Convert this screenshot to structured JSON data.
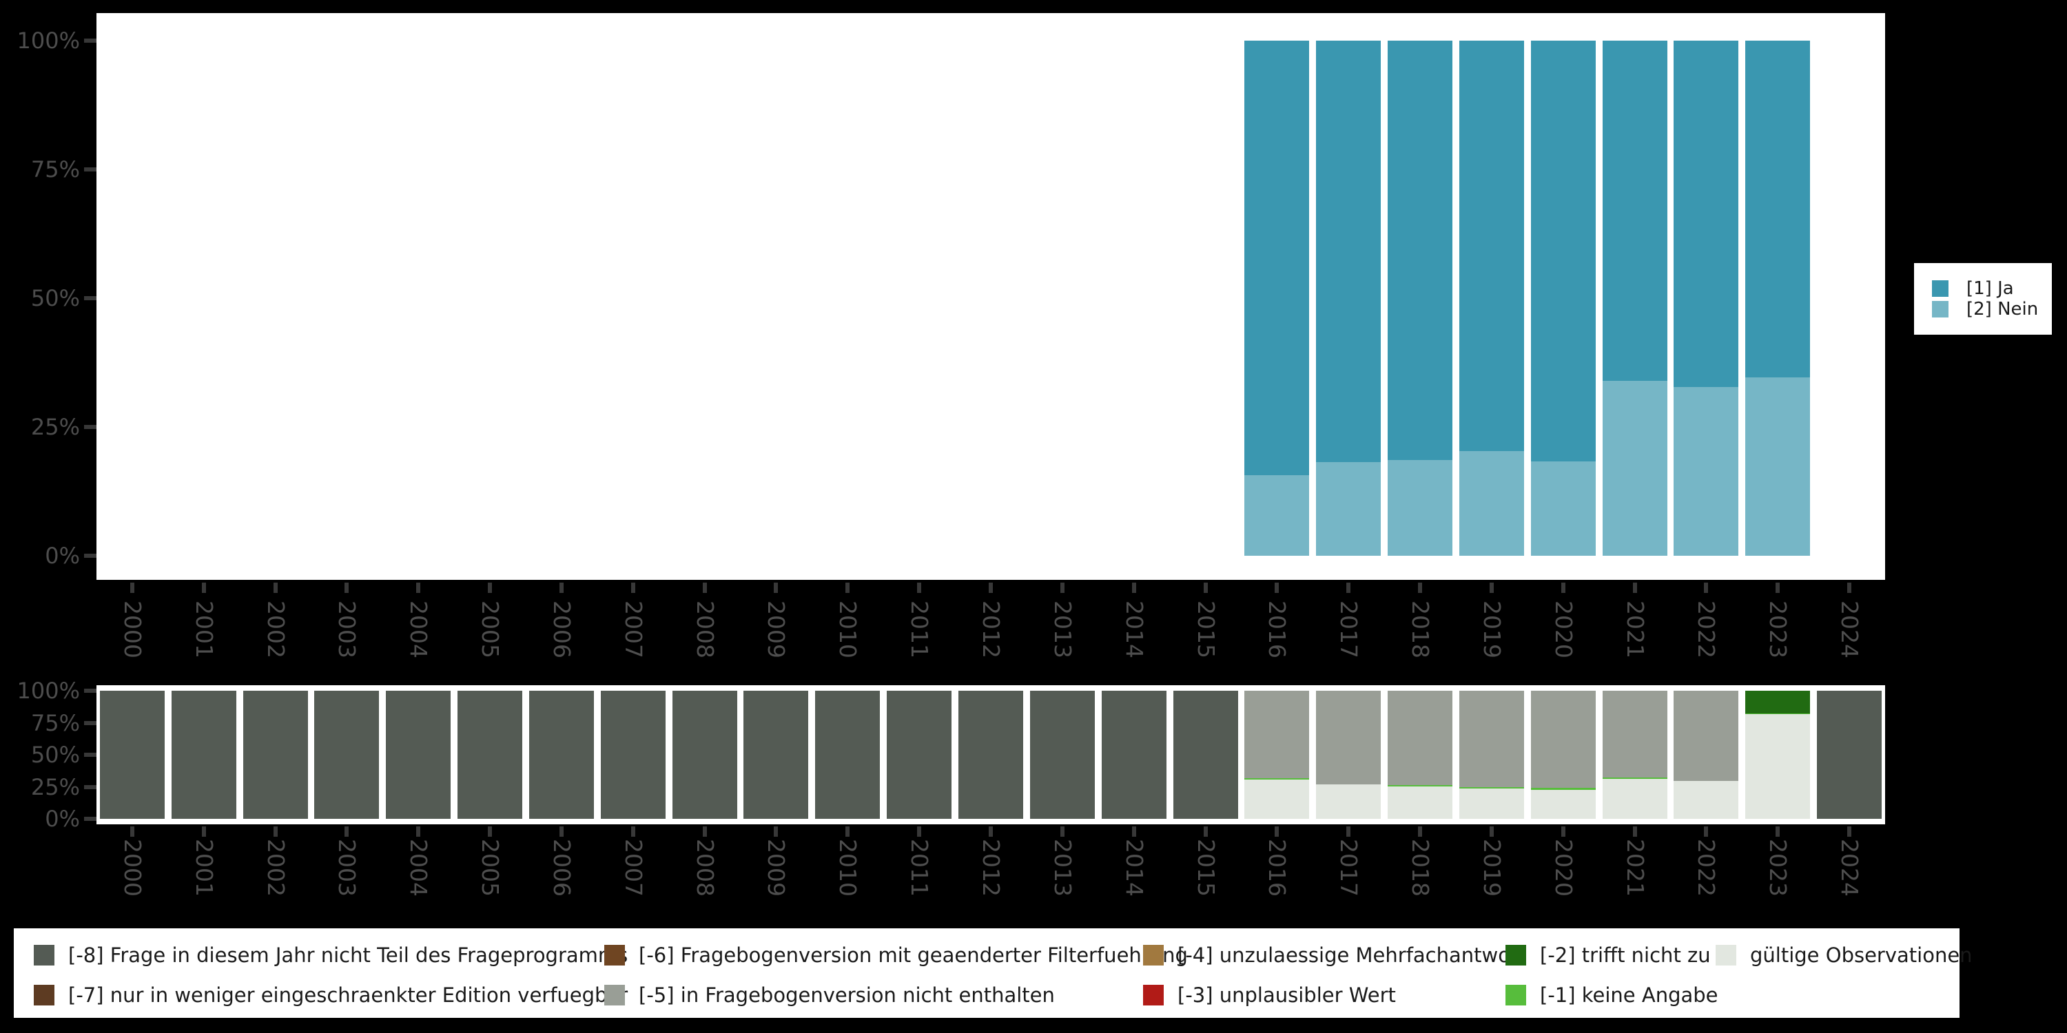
{
  "colors": {
    "background": "#000000",
    "panel": "#ffffff",
    "ja": "#3a97b0",
    "nein": "#76b6c6",
    "missing8": "#545b54",
    "missing7": "#5d3b22",
    "missing6": "#6f4522",
    "missing5": "#999e96",
    "missing4": "#a1793f",
    "missing3": "#b11b17",
    "missing2": "#216b12",
    "missing1": "#57bd3c",
    "valid": "#e2e7e0",
    "axis_label": "#4d4d4d",
    "tick": "#383838",
    "legend_text": "#1a1a1a"
  },
  "y_axis": {
    "tick_labels": [
      "100%",
      "75%",
      "50%",
      "25%",
      "0%"
    ]
  },
  "x_axis": {
    "years": [
      "2000",
      "2001",
      "2002",
      "2003",
      "2004",
      "2005",
      "2006",
      "2007",
      "2008",
      "2009",
      "2010",
      "2011",
      "2012",
      "2013",
      "2014",
      "2015",
      "2016",
      "2017",
      "2018",
      "2019",
      "2020",
      "2021",
      "2022",
      "2023",
      "2024"
    ]
  },
  "top_legend": {
    "items": [
      {
        "label": "[1] Ja",
        "color": "#3a97b0"
      },
      {
        "label": "[2] Nein",
        "color": "#76b6c6"
      }
    ]
  },
  "bottom_legend": {
    "columns": [
      [
        {
          "label": "[-8] Frage in diesem Jahr nicht Teil des Frageprogramms",
          "color": "#545b54"
        },
        {
          "label": "[-7] nur in weniger eingeschraenkter Edition verfuegbar",
          "color": "#5d3b22"
        }
      ],
      [
        {
          "label": "[-6] Fragebogenversion mit geaenderter Filterfuehrung",
          "color": "#6f4522"
        },
        {
          "label": "[-5] in Fragebogenversion nicht enthalten",
          "color": "#999e96"
        }
      ],
      [
        {
          "label": "[-4] unzulaessige Mehrfachantwort",
          "color": "#a1793f"
        },
        {
          "label": "[-3] unplausibler Wert",
          "color": "#b11b17"
        }
      ],
      [
        {
          "label": "[-2] trifft nicht zu",
          "color": "#216b12"
        },
        {
          "label": "[-1] keine Angabe",
          "color": "#57bd3c"
        }
      ],
      [
        {
          "label": "gültige Observationen",
          "color": "#e2e7e0"
        }
      ]
    ]
  },
  "chart_data": [
    {
      "id": "responses",
      "type": "bar",
      "stacked": true,
      "unit": "percent",
      "ylim": [
        0,
        100
      ],
      "y_ticks": [
        0,
        25,
        50,
        75,
        100
      ],
      "grid": false,
      "legend_position": "right",
      "categories": [
        "2000",
        "2001",
        "2002",
        "2003",
        "2004",
        "2005",
        "2006",
        "2007",
        "2008",
        "2009",
        "2010",
        "2011",
        "2012",
        "2013",
        "2014",
        "2015",
        "2016",
        "2017",
        "2018",
        "2019",
        "2020",
        "2021",
        "2022",
        "2023",
        "2024"
      ],
      "series": [
        {
          "name": "[2] Nein",
          "color": "#76b6c6",
          "values": [
            null,
            null,
            null,
            null,
            null,
            null,
            null,
            null,
            null,
            null,
            null,
            null,
            null,
            null,
            null,
            null,
            15.6,
            18.2,
            18.6,
            20.3,
            18.3,
            34.0,
            32.8,
            34.6,
            null
          ]
        },
        {
          "name": "[1] Ja",
          "color": "#3a97b0",
          "values": [
            null,
            null,
            null,
            null,
            null,
            null,
            null,
            null,
            null,
            null,
            null,
            null,
            null,
            null,
            null,
            null,
            84.4,
            81.8,
            81.4,
            79.7,
            81.7,
            66.0,
            67.2,
            65.4,
            null
          ]
        }
      ]
    },
    {
      "id": "missings",
      "type": "bar",
      "stacked": true,
      "unit": "percent",
      "ylim": [
        0,
        100
      ],
      "y_ticks": [
        0,
        25,
        50,
        75,
        100
      ],
      "grid": false,
      "legend_position": "bottom",
      "categories": [
        "2000",
        "2001",
        "2002",
        "2003",
        "2004",
        "2005",
        "2006",
        "2007",
        "2008",
        "2009",
        "2010",
        "2011",
        "2012",
        "2013",
        "2014",
        "2015",
        "2016",
        "2017",
        "2018",
        "2019",
        "2020",
        "2021",
        "2022",
        "2023",
        "2024"
      ],
      "series": [
        {
          "name": "gültige Observationen",
          "color": "#e2e7e0",
          "values": [
            0,
            0,
            0,
            0,
            0,
            0,
            0,
            0,
            0,
            0,
            0,
            0,
            0,
            0,
            0,
            0,
            30.5,
            27.0,
            25.5,
            23.5,
            22.5,
            31.0,
            29.5,
            81.5,
            0
          ]
        },
        {
          "name": "[-1] keine Angabe",
          "color": "#57bd3c",
          "values": [
            0,
            0,
            0,
            0,
            0,
            0,
            0,
            0,
            0,
            0,
            0,
            0,
            0,
            0,
            0,
            0,
            1.0,
            0,
            1.0,
            1.0,
            1.5,
            1.0,
            0,
            1.0,
            0
          ]
        },
        {
          "name": "[-2] trifft nicht zu",
          "color": "#216b12",
          "values": [
            0,
            0,
            0,
            0,
            0,
            0,
            0,
            0,
            0,
            0,
            0,
            0,
            0,
            0,
            0,
            0,
            0,
            0,
            0,
            0,
            0,
            0,
            0,
            17.5,
            0
          ]
        },
        {
          "name": "[-5] in Fragebogenversion nicht enthalten",
          "color": "#999e96",
          "values": [
            0,
            0,
            0,
            0,
            0,
            0,
            0,
            0,
            0,
            0,
            0,
            0,
            0,
            0,
            0,
            0,
            68.5,
            73.0,
            73.5,
            75.5,
            76.0,
            68.0,
            70.5,
            0,
            0
          ]
        },
        {
          "name": "[-8] Frage in diesem Jahr nicht Teil des Frageprogramms",
          "color": "#545b54",
          "values": [
            100,
            100,
            100,
            100,
            100,
            100,
            100,
            100,
            100,
            100,
            100,
            100,
            100,
            100,
            100,
            100,
            0,
            0,
            0,
            0,
            0,
            0,
            0,
            0,
            100
          ]
        }
      ]
    }
  ]
}
